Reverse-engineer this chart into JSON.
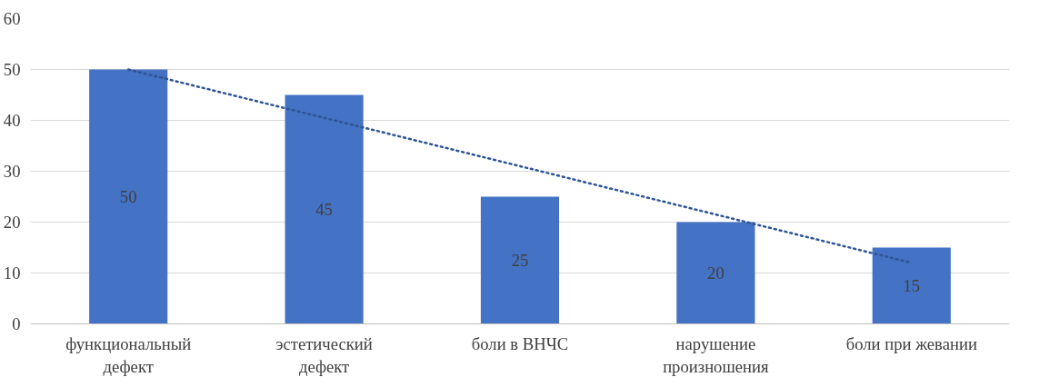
{
  "chart_data": {
    "type": "bar",
    "categories": [
      "функциональный\nдефект",
      "эстетический\nдефект",
      "боли в ВНЧС",
      "нарушение\nпроизношения",
      "боли при жевании"
    ],
    "series": [
      {
        "color": "#4472c4",
        "values": [
          50,
          45,
          25,
          20,
          15
        ],
        "value_labels": [
          "50",
          "45",
          "25",
          "20",
          "15"
        ]
      },
      {
        "type": "line",
        "color": "#2f5597",
        "line_style": "dotted",
        "x": [
          "функциональный\nдефект",
          "эстетический\nдефект",
          "боли в ВНЧС",
          "нарушение\nпроизношения",
          "боли при жевании"
        ],
        "values": [
          50,
          40.5,
          31,
          21.5,
          12
        ]
      }
    ],
    "ylim": [
      0,
      60
    ],
    "yticks": [
      0,
      10,
      20,
      30,
      40,
      50,
      60
    ],
    "grid": "y"
  }
}
